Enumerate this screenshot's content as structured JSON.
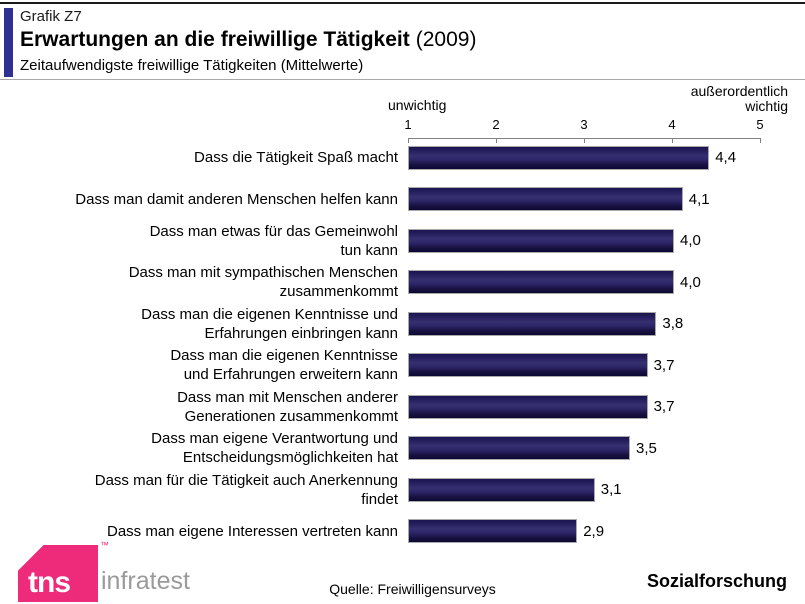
{
  "header": {
    "kicker": "Grafik Z7",
    "title": "Erwartungen an die freiwillige Tätigkeit",
    "title_suffix": "(2009)",
    "subtitle": "Zeitaufwendigste freiwillige Tätigkeiten (Mittelwerte)"
  },
  "chart_data": {
    "type": "bar",
    "orientation": "horizontal",
    "title": "Erwartungen an die freiwillige Tätigkeit (2009)",
    "subtitle": "Zeitaufwendigste freiwillige Tätigkeiten (Mittelwerte)",
    "grid": false,
    "legend": false,
    "axis": {
      "min": 1,
      "max": 5,
      "ticks": [
        "1",
        "2",
        "3",
        "4",
        "5"
      ],
      "min_label": "unwichtig",
      "max_label": "außerordentlich\nwichtig"
    },
    "categories": [
      "Dass die Tätigkeit Spaß macht",
      "Dass man damit anderen Menschen helfen kann",
      "Dass man etwas für das Gemeinwohl tun kann",
      "Dass man mit sympathischen Menschen zusammenkommt",
      "Dass man die eigenen Kenntnisse und Erfahrungen einbringen kann",
      "Dass man die eigenen Kenntnisse und Erfahrungen erweitern kann",
      "Dass man mit Menschen anderer Generationen zusammenkommt",
      "Dass man eigene Verantwortung und Entscheidungsmöglichkeiten hat",
      "Dass man für die Tätigkeit auch Anerkennung findet",
      "Dass man eigene Interessen vertreten kann"
    ],
    "values": [
      4.4,
      4.1,
      4.0,
      4.0,
      3.8,
      3.7,
      3.7,
      3.5,
      3.1,
      2.9
    ],
    "rows": [
      {
        "label_lines": [
          "Dass die Tätigkeit Spaß macht"
        ],
        "value": 4.4,
        "value_label": "4,4"
      },
      {
        "label_lines": [
          "Dass man damit anderen Menschen helfen kann"
        ],
        "value": 4.1,
        "value_label": "4,1"
      },
      {
        "label_lines": [
          "Dass man etwas für das Gemeinwohl",
          "tun kann"
        ],
        "value": 4.0,
        "value_label": "4,0"
      },
      {
        "label_lines": [
          "Dass man mit sympathischen Menschen",
          "zusammenkommt"
        ],
        "value": 4.0,
        "value_label": "4,0"
      },
      {
        "label_lines": [
          "Dass man die eigenen Kenntnisse und",
          "Erfahrungen einbringen kann"
        ],
        "value": 3.8,
        "value_label": "3,8"
      },
      {
        "label_lines": [
          "Dass man die eigenen Kenntnisse",
          "und Erfahrungen erweitern kann"
        ],
        "value": 3.7,
        "value_label": "3,7"
      },
      {
        "label_lines": [
          "Dass man mit Menschen anderer",
          "Generationen zusammenkommt"
        ],
        "value": 3.7,
        "value_label": "3,7"
      },
      {
        "label_lines": [
          "Dass man eigene Verantwortung und",
          "Entscheidungsmöglichkeiten hat"
        ],
        "value": 3.5,
        "value_label": "3,5"
      },
      {
        "label_lines": [
          "Dass man für die Tätigkeit auch Anerkennung",
          "findet"
        ],
        "value": 3.1,
        "value_label": "3,1"
      },
      {
        "label_lines": [
          "Dass man eigene Interessen vertreten kann"
        ],
        "value": 2.9,
        "value_label": "2,9"
      }
    ]
  },
  "footer": {
    "logo_primary": "tns",
    "logo_tm": "™",
    "logo_secondary": "infratest",
    "source": "Quelle: Freiwilligensurveys",
    "division": "Sozialforschung"
  },
  "colors": {
    "accent_bar": "#2e3192",
    "bar_mid": "#373070",
    "bar_border": "#a9a9a9",
    "logo_pink": "#ee2a7b",
    "logo_gray": "#9a9a9a"
  }
}
